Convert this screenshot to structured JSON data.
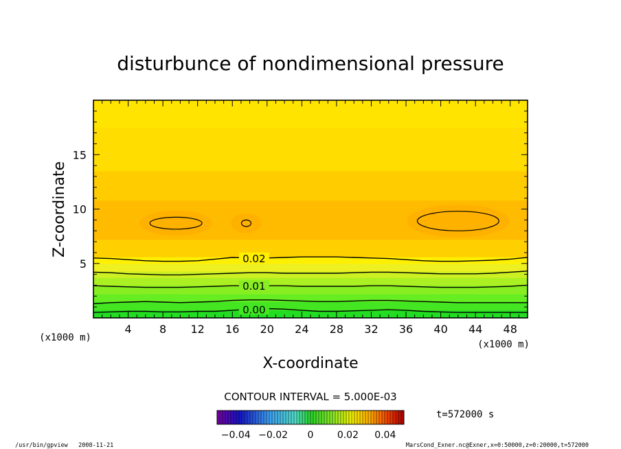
{
  "chart_data": {
    "type": "heatmap",
    "title": "disturbunce of nondimensional pressure",
    "xlabel": "X-coordinate",
    "ylabel": "Z-coordinate",
    "x_unit": "(x1000 m)",
    "y_unit": "(x1000 m)",
    "xlim": [
      0,
      50
    ],
    "ylim": [
      0,
      20
    ],
    "x_ticks": [
      "4",
      "8",
      "12",
      "16",
      "20",
      "24",
      "28",
      "32",
      "36",
      "40",
      "44",
      "48"
    ],
    "y_ticks": [
      "5",
      "10",
      "15"
    ],
    "contour_interval_label": "CONTOUR INTERVAL = 5.000E-03",
    "colorbar": {
      "range": [
        -0.05,
        0.05
      ],
      "tick_labels": [
        "−0.04",
        "−0.02",
        "0",
        "0.02",
        "0.04"
      ]
    },
    "contours": [
      {
        "level": 0.0,
        "label": "0.00",
        "z_profile": [
          0.5,
          0.55,
          0.6,
          0.6,
          0.55,
          0.55,
          0.6,
          0.6,
          0.7,
          0.8,
          0.85,
          0.8,
          0.7,
          0.6,
          0.6,
          0.65,
          0.7,
          0.75,
          0.7,
          0.6,
          0.55,
          0.5,
          0.5,
          0.5,
          0.5,
          0.5
        ]
      },
      {
        "level": 0.005,
        "label": "",
        "z_profile": [
          1.3,
          1.4,
          1.45,
          1.5,
          1.45,
          1.4,
          1.45,
          1.5,
          1.6,
          1.65,
          1.65,
          1.6,
          1.55,
          1.5,
          1.5,
          1.55,
          1.6,
          1.6,
          1.55,
          1.5,
          1.45,
          1.4,
          1.4,
          1.4,
          1.4,
          1.4
        ]
      },
      {
        "level": 0.01,
        "label": "0.01",
        "z_profile": [
          2.95,
          2.9,
          2.85,
          2.8,
          2.8,
          2.8,
          2.85,
          2.9,
          2.95,
          2.95,
          2.95,
          2.95,
          2.9,
          2.9,
          2.9,
          2.9,
          2.95,
          2.95,
          2.9,
          2.85,
          2.8,
          2.8,
          2.8,
          2.85,
          2.9,
          3.0
        ]
      },
      {
        "level": 0.015,
        "label": "",
        "z_profile": [
          4.2,
          4.15,
          4.05,
          4.0,
          3.95,
          3.95,
          4.0,
          4.05,
          4.1,
          4.15,
          4.15,
          4.1,
          4.1,
          4.1,
          4.1,
          4.15,
          4.2,
          4.2,
          4.15,
          4.1,
          4.05,
          4.05,
          4.05,
          4.1,
          4.2,
          4.3
        ]
      },
      {
        "level": 0.02,
        "label": "0.02",
        "z_profile": [
          5.5,
          5.45,
          5.35,
          5.25,
          5.2,
          5.2,
          5.25,
          5.4,
          5.55,
          5.5,
          5.5,
          5.55,
          5.6,
          5.6,
          5.6,
          5.55,
          5.5,
          5.45,
          5.35,
          5.25,
          5.2,
          5.2,
          5.25,
          5.3,
          5.4,
          5.55
        ]
      }
    ],
    "closed_contours": [
      {
        "level": 0.035,
        "x_center": 9.5,
        "z_center": 8.7,
        "x_halfwidth": 3.0,
        "z_halfheight": 0.55
      },
      {
        "level": 0.035,
        "x_center": 17.6,
        "z_center": 8.7,
        "x_halfwidth": 0.55,
        "z_halfheight": 0.3
      },
      {
        "level": 0.035,
        "x_center": 42.0,
        "z_center": 8.9,
        "x_halfwidth": 4.7,
        "z_halfheight": 0.9
      }
    ],
    "color_bands_by_z": [
      {
        "z_from": 0.0,
        "z_to": 0.7,
        "color": "#22dd22"
      },
      {
        "z_from": 0.7,
        "z_to": 1.5,
        "color": "#44e622"
      },
      {
        "z_from": 1.5,
        "z_to": 2.2,
        "color": "#66ee22"
      },
      {
        "z_from": 2.2,
        "z_to": 3.0,
        "color": "#88ee22"
      },
      {
        "z_from": 3.0,
        "z_to": 3.7,
        "color": "#aaf022"
      },
      {
        "z_from": 3.7,
        "z_to": 4.3,
        "color": "#ccf022"
      },
      {
        "z_from": 4.3,
        "z_to": 5.0,
        "color": "#eef022"
      },
      {
        "z_from": 5.0,
        "z_to": 5.6,
        "color": "#fff000"
      },
      {
        "z_from": 5.6,
        "z_to": 7.2,
        "color": "#ffd000"
      },
      {
        "z_from": 7.2,
        "z_to": 10.8,
        "color": "#ffbb00"
      },
      {
        "z_from": 10.8,
        "z_to": 13.5,
        "color": "#ffcc00"
      },
      {
        "z_from": 13.5,
        "z_to": 17.5,
        "color": "#ffdd00"
      },
      {
        "z_from": 17.5,
        "z_to": 20.0,
        "color": "#ffe400"
      }
    ]
  },
  "time_label": "t=572000 s",
  "footer": {
    "left": "/usr/bin/gpview   2008-11-21",
    "right": "MarsCond_Exner.nc@Exner,x=0:50000,z=0:20000,t=572000"
  }
}
